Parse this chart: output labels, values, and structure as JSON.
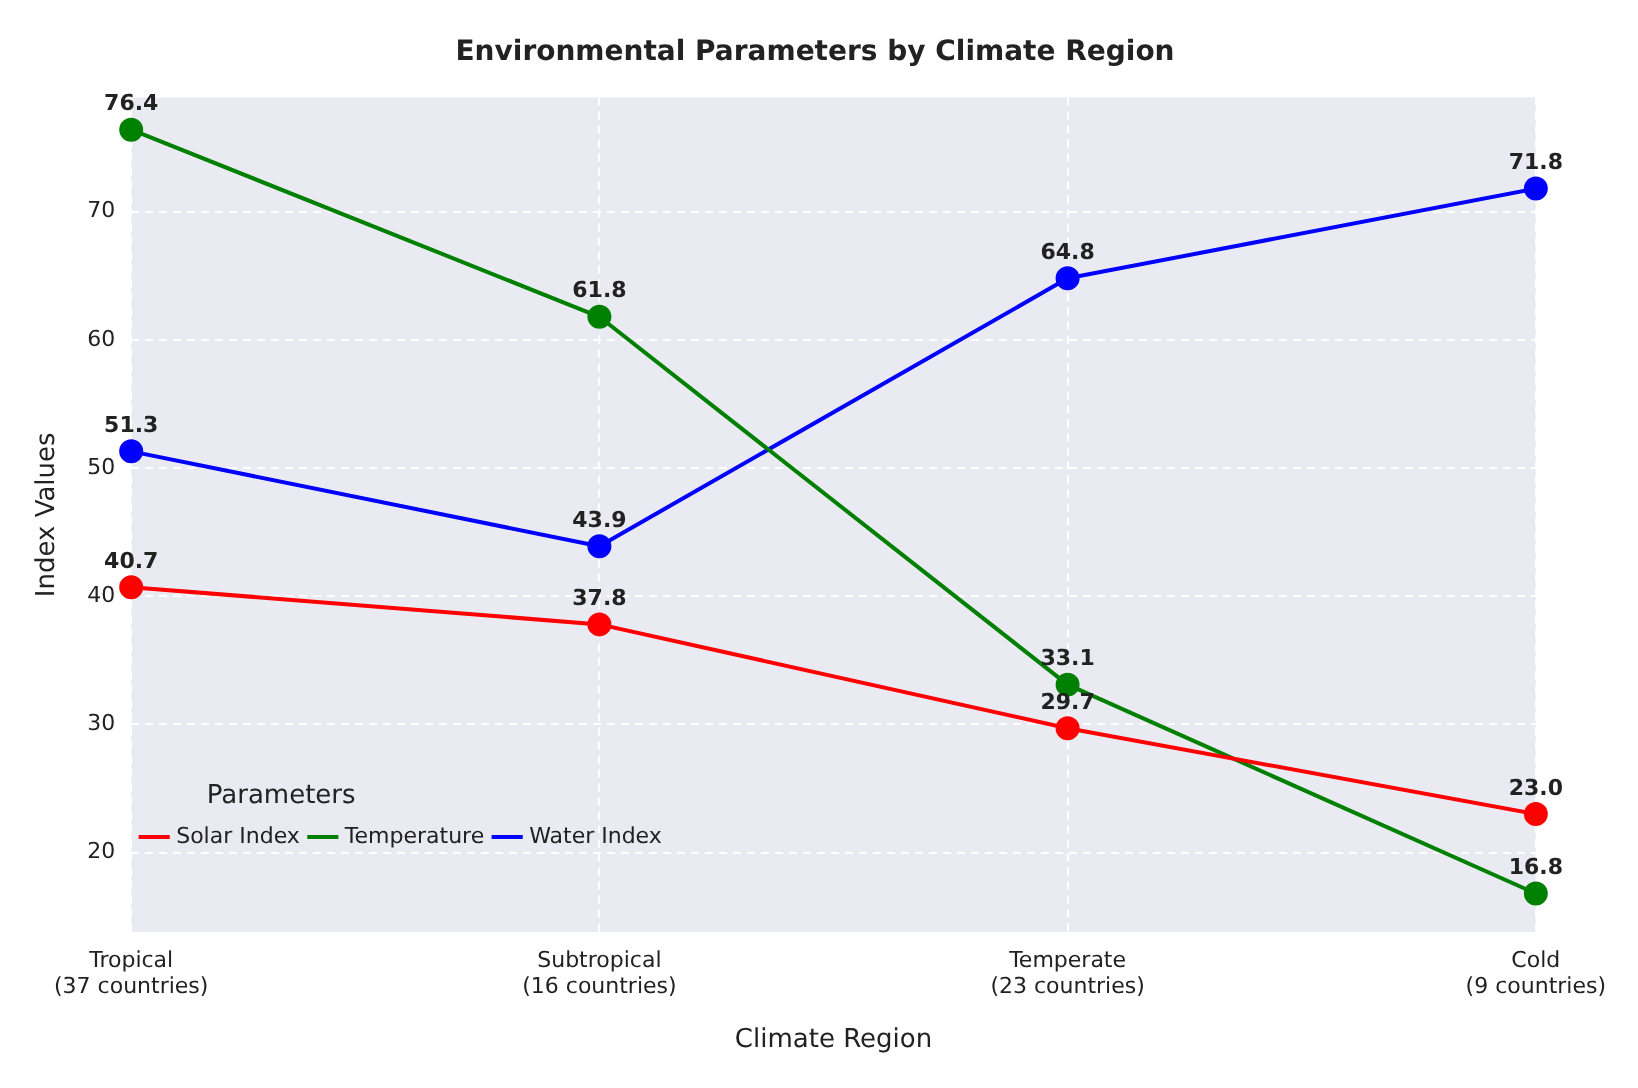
{
  "chart_data": {
    "type": "line",
    "title": "Environmental Parameters by Climate Region",
    "xlabel": "Climate Region",
    "ylabel": "Index Values",
    "legend_title": "Parameters",
    "categories": [
      "Tropical\n(37 countries)",
      "Subtropical\n(16 countries)",
      "Temperate\n(23 countries)",
      "Cold\n(9 countries)"
    ],
    "series": [
      {
        "name": "Solar Index",
        "color": "#ff0000",
        "values": [
          40.7,
          37.8,
          29.7,
          23.0
        ],
        "value_labels": [
          "40.7",
          "37.8",
          "29.7",
          "23.0"
        ]
      },
      {
        "name": "Temperature",
        "color": "#008000",
        "values": [
          76.4,
          61.8,
          33.1,
          16.8
        ],
        "value_labels": [
          "76.4",
          "61.8",
          "33.1",
          "16.8"
        ]
      },
      {
        "name": "Water Index",
        "color": "#0000ff",
        "values": [
          51.3,
          43.9,
          64.8,
          71.8
        ],
        "value_labels": [
          "51.3",
          "43.9",
          "64.8",
          "71.8"
        ]
      }
    ],
    "ylim": [
      13.8,
      78.9
    ],
    "yticks": [
      20,
      30,
      40,
      50,
      60,
      70
    ],
    "grid": true,
    "legend": "bottom left",
    "marker": "circle",
    "line_style": "solid",
    "data_labels": true
  }
}
